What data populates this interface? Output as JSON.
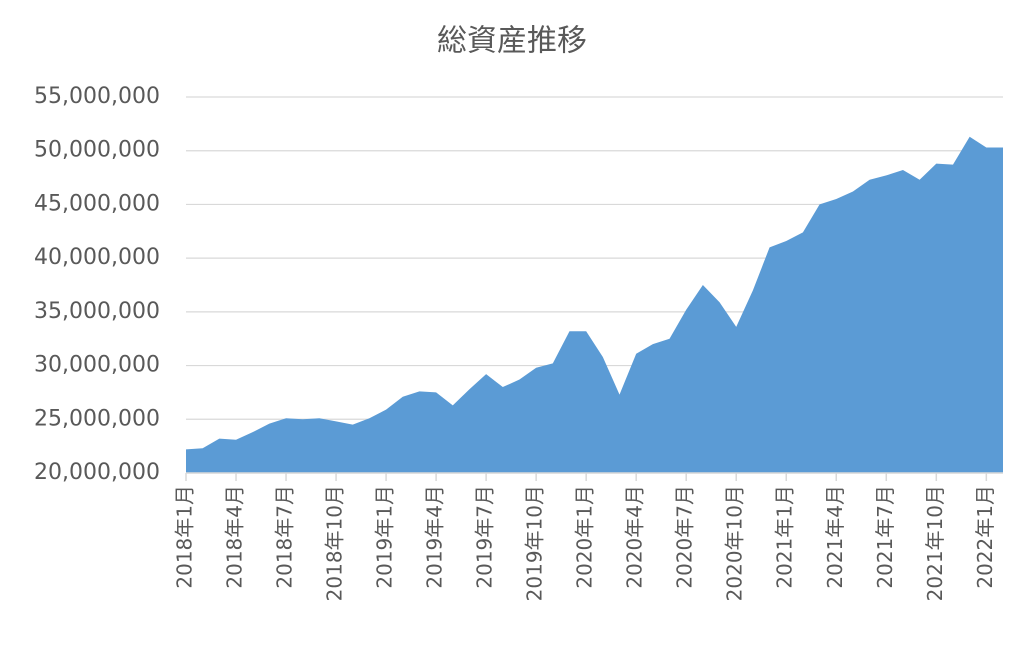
{
  "chart_data": {
    "type": "area",
    "title": "総資産推移",
    "categories": [
      "2018年1月",
      null,
      null,
      "2018年4月",
      null,
      null,
      "2018年7月",
      null,
      null,
      "2018年10月",
      null,
      null,
      "2019年1月",
      null,
      null,
      "2019年4月",
      null,
      null,
      "2019年7月",
      null,
      null,
      "2019年10月",
      null,
      null,
      "2020年1月",
      null,
      null,
      "2020年4月",
      null,
      null,
      "2020年7月",
      null,
      null,
      "2020年10月",
      null,
      null,
      "2021年1月",
      null,
      null,
      "2021年4月",
      null,
      null,
      "2021年7月",
      null,
      null,
      "2021年10月",
      null,
      null,
      "2022年1月",
      null
    ],
    "values": [
      22200000,
      22300000,
      23200000,
      23100000,
      23800000,
      24600000,
      25100000,
      25000000,
      25100000,
      24800000,
      24500000,
      25100000,
      25900000,
      27100000,
      27600000,
      27500000,
      26300000,
      27800000,
      29200000,
      28000000,
      28700000,
      29800000,
      30200000,
      33200000,
      33200000,
      30800000,
      27300000,
      31100000,
      32000000,
      32500000,
      35200000,
      37500000,
      35900000,
      33600000,
      37000000,
      41000000,
      41600000,
      42400000,
      45000000,
      45500000,
      46200000,
      47300000,
      47700000,
      48200000,
      47300000,
      48800000,
      48700000,
      51300000,
      50300000,
      50300000
    ],
    "color": "#5b9bd5",
    "ylim": [
      20000000,
      55000000
    ],
    "yticks": [
      {
        "value": 20000000,
        "label": "20,000,000"
      },
      {
        "value": 25000000,
        "label": "25,000,000"
      },
      {
        "value": 30000000,
        "label": "30,000,000"
      },
      {
        "value": 35000000,
        "label": "35,000,000"
      },
      {
        "value": 40000000,
        "label": "40,000,000"
      },
      {
        "value": 45000000,
        "label": "45,000,000"
      },
      {
        "value": 50000000,
        "label": "50,000,000"
      },
      {
        "value": 55000000,
        "label": "55,000,000"
      }
    ],
    "grid": true
  }
}
